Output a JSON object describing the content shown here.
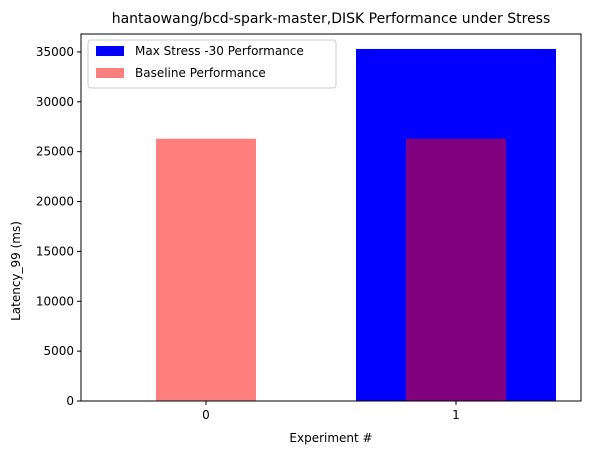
{
  "chart_data": {
    "type": "bar",
    "title": "hantaowang/bcd-spark-master,DISK Performance under Stress",
    "xlabel": "Experiment #",
    "ylabel": "Latency_99 (ms)",
    "categories": [
      "0",
      "1"
    ],
    "ylim": [
      0,
      36800
    ],
    "yticks": [
      0,
      5000,
      10000,
      15000,
      20000,
      25000,
      30000,
      35000
    ],
    "grid": false,
    "legend_position": "top-left",
    "series": [
      {
        "name": "Max Stress -30 Performance",
        "color": "#0000ff",
        "opacity": 1.0,
        "bar_width": 0.8,
        "values": [
          null,
          35300
        ]
      },
      {
        "name": "Baseline Performance",
        "color": "#ff0000",
        "opacity": 0.5,
        "bar_width": 0.4,
        "values": [
          26300,
          26300
        ]
      }
    ]
  }
}
